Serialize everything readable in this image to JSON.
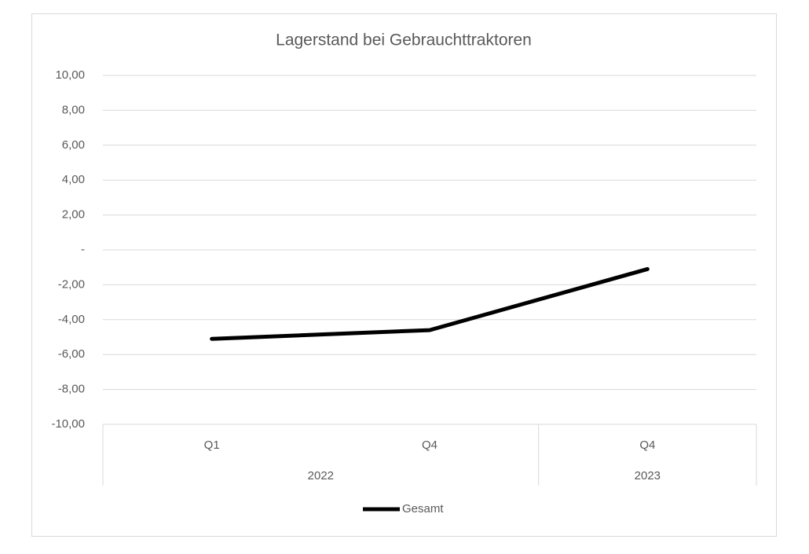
{
  "chart_data": {
    "type": "line",
    "title": "Lagerstand bei Gebrauchttraktoren",
    "groups": [
      {
        "name": "2022",
        "categories": [
          "Q1",
          "Q4"
        ]
      },
      {
        "name": "2023",
        "categories": [
          "Q4"
        ]
      }
    ],
    "series": [
      {
        "name": "Gesamt",
        "color": "#000000",
        "values": [
          -5.1,
          -4.6,
          -1.1
        ]
      }
    ],
    "ylim": [
      -10,
      10
    ],
    "yticks": [
      {
        "value": -10,
        "label": "-10,00"
      },
      {
        "value": -8,
        "label": "-8,00"
      },
      {
        "value": -6,
        "label": "-6,00"
      },
      {
        "value": -4,
        "label": "-4,00"
      },
      {
        "value": -2,
        "label": "-2,00"
      },
      {
        "value": 0,
        "label": "-"
      },
      {
        "value": 2,
        "label": "2,00"
      },
      {
        "value": 4,
        "label": "4,00"
      },
      {
        "value": 6,
        "label": "6,00"
      },
      {
        "value": 8,
        "label": "8,00"
      },
      {
        "value": 10,
        "label": "10,00"
      }
    ],
    "grid": true,
    "legend": "bottom"
  }
}
